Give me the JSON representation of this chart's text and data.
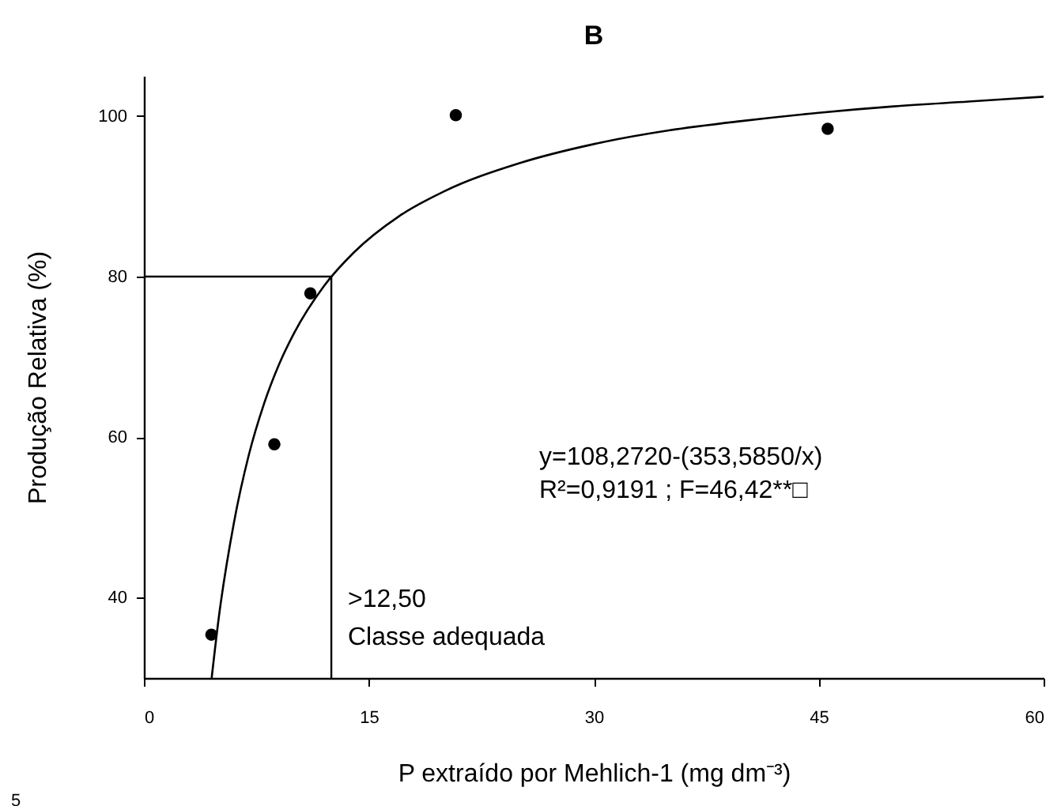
{
  "chart_data": {
    "type": "scatter",
    "title": "B",
    "xlabel": "P extraído por Mehlich-1 (mg dm⁻³)",
    "ylabel": "Produção Relativa (%)",
    "xlim": [
      0,
      60
    ],
    "xticks": [
      0,
      15,
      30,
      45,
      60
    ],
    "ylim": [
      30,
      105
    ],
    "yticks": [
      40,
      60,
      80,
      100
    ],
    "grid": false,
    "series": [
      {
        "color": "#000000",
        "marker": "circle",
        "x": [
          4.5,
          8.7,
          11.1,
          20.8,
          45.6
        ],
        "values": [
          35.4,
          59.1,
          77.9,
          100.1,
          98.4
        ]
      },
      {
        "type": "line",
        "color": "#000000",
        "marker": "none",
        "line_style": "solid",
        "x": [
          4.52,
          5,
          6,
          7,
          8,
          9,
          10,
          12,
          14,
          17,
          20,
          25,
          30,
          35,
          40,
          45,
          50,
          55,
          60
        ],
        "values": [
          30.0,
          37.6,
          49.3,
          57.8,
          64.1,
          69.0,
          72.9,
          78.8,
          83.0,
          87.5,
          90.6,
          94.1,
          96.5,
          98.2,
          99.4,
          100.4,
          101.2,
          101.8,
          102.4
        ]
      }
    ],
    "ref_lines": [
      {
        "axis": "y",
        "value": 80,
        "color": "#000000"
      },
      {
        "axis": "x",
        "value": 12.5,
        "color": "#000000"
      }
    ],
    "annotations": [
      "y=108,2720-(353,5850/x)",
      "R²=0,9191 ; F=46,42**□",
      ">12,50",
      "Classe adequada",
      "5"
    ]
  }
}
